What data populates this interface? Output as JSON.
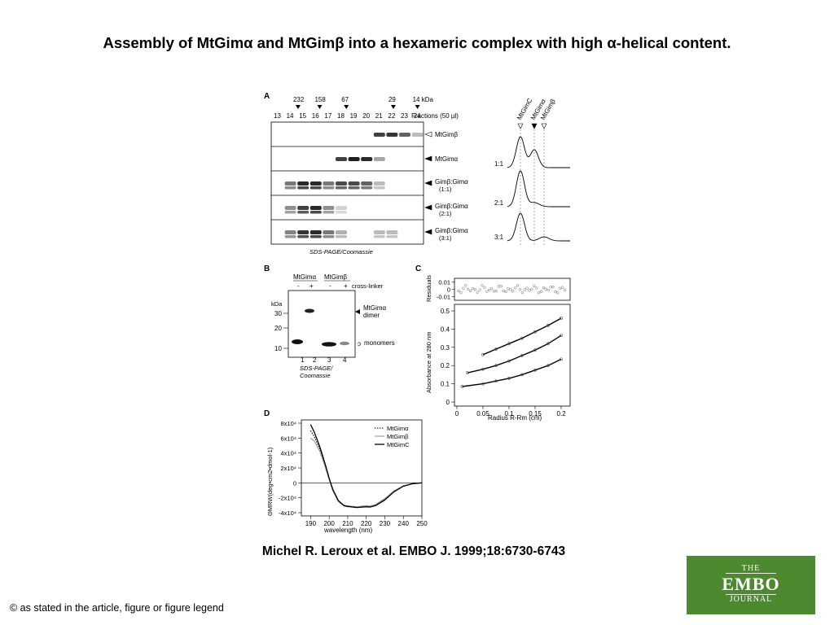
{
  "title": "Assembly of MtGimα and MtGimβ into a hexameric complex with high α-helical content.",
  "citation": "Michel R. Leroux et al. EMBO J. 1999;18:6730-6743",
  "copyright": "© as stated in the article, figure or figure legend",
  "logo": {
    "line1": "THE",
    "line2": "EMBO",
    "line3": "JOURNAL",
    "color": "#4d8a2f"
  },
  "figure": {
    "panelA": {
      "label": "A",
      "markers": [
        "232",
        "158",
        "67",
        "29",
        "14 kDa"
      ],
      "fraction_numbers": [
        "13",
        "14",
        "15",
        "16",
        "17",
        "18",
        "19",
        "20",
        "21",
        "22",
        "23",
        "24"
      ],
      "fractions_label": "Fractions (50 µl)",
      "gel_rows": [
        {
          "label": "MtGimβ",
          "sub": ""
        },
        {
          "label": "MtGimα",
          "sub": ""
        },
        {
          "label": "Gimβ:Gimα",
          "sub": "(1:1)"
        },
        {
          "label": "Gimβ:Gimα",
          "sub": "(2:1)"
        },
        {
          "label": "Gimβ:Gimα",
          "sub": "(3:1)"
        }
      ],
      "gel_caption": "SDS-PAGE/Coomassie",
      "trace_headers": [
        "MtGimC",
        "MtGimα",
        "MtGimβ"
      ],
      "ratios": [
        "1:1",
        "2:1",
        "3:1"
      ]
    },
    "panelB": {
      "label": "B",
      "headers": [
        "MtGimα",
        "MtGimβ"
      ],
      "signs": [
        "-",
        "+",
        "-",
        "+"
      ],
      "crosslinker_label": "cross-linker",
      "kda_label": "kDa",
      "mw_ticks": [
        "30",
        "20",
        "10"
      ],
      "dimer_label_1": "MtGimα",
      "dimer_label_2": "dimer",
      "monomers_label": "monomers",
      "lanes": [
        "1",
        "2",
        "3",
        "4"
      ],
      "caption_1": "SDS-PAGE/",
      "caption_2": "Coomassie"
    },
    "panelD_label": "D"
  },
  "chart_data": [
    {
      "panel": "C",
      "type": "scatter",
      "title": "C",
      "xlabel": "Radius R-Rm (cm)",
      "ylabel": "Absorbance at 280 nm",
      "xlim": [
        0,
        0.2
      ],
      "ylim": [
        0,
        0.5
      ],
      "xticks": [
        "0",
        "0.05",
        "0.1",
        "0.15",
        "0.2"
      ],
      "yticks": [
        "0",
        "0.1",
        "0.2",
        "0.3",
        "0.4",
        "0.5"
      ],
      "series": [
        {
          "x": [
            0.05,
            0.075,
            0.1,
            0.125,
            0.15,
            0.175,
            0.2
          ],
          "y": [
            0.26,
            0.29,
            0.32,
            0.35,
            0.385,
            0.42,
            0.46
          ]
        },
        {
          "x": [
            0.02,
            0.05,
            0.075,
            0.1,
            0.125,
            0.15,
            0.175,
            0.2
          ],
          "y": [
            0.16,
            0.18,
            0.2,
            0.225,
            0.255,
            0.285,
            0.32,
            0.365
          ]
        },
        {
          "x": [
            0.01,
            0.05,
            0.075,
            0.1,
            0.125,
            0.15,
            0.175,
            0.2
          ],
          "y": [
            0.085,
            0.1,
            0.115,
            0.13,
            0.15,
            0.175,
            0.2,
            0.235
          ]
        }
      ],
      "residuals": {
        "ylabel": "Residuals",
        "ylim": [
          -0.015,
          0.015
        ],
        "yticks": [
          "0.01",
          "0",
          "-0.01"
        ]
      }
    },
    {
      "panel": "D",
      "type": "line",
      "xlabel": "wavelength (nm)",
      "ylabel": "ΘMRW(deg•cm2•dmol-1)",
      "xlim": [
        185,
        250
      ],
      "ylim": [
        -40000,
        80000
      ],
      "xticks": [
        "190",
        "200",
        "210",
        "220",
        "230",
        "240",
        "250"
      ],
      "yticks": [
        "8x10⁴",
        "6x10⁴",
        "4x10⁴",
        "2x10⁴",
        "0",
        "-2x10⁴",
        "-4x10⁴"
      ],
      "series": [
        {
          "name": "MtGimα",
          "style": "dotted",
          "x": [
            190,
            192,
            195,
            198,
            200,
            202,
            205,
            208,
            210,
            215,
            220,
            222,
            225,
            230,
            235,
            240,
            245,
            250
          ],
          "y": [
            70000,
            62000,
            45000,
            22000,
            5000,
            -10000,
            -25000,
            -31000,
            -32000,
            -33000,
            -31500,
            -32000,
            -30000,
            -22000,
            -11000,
            -4000,
            -1000,
            0
          ]
        },
        {
          "name": "MtGimβ",
          "style": "gray",
          "x": [
            190,
            192,
            195,
            198,
            200,
            202,
            205,
            208,
            210,
            215,
            220,
            222,
            225,
            230,
            235,
            240,
            245,
            250
          ],
          "y": [
            60000,
            56000,
            42000,
            20000,
            4000,
            -11000,
            -25000,
            -30000,
            -31000,
            -32000,
            -30500,
            -31000,
            -29000,
            -21000,
            -10500,
            -4000,
            -1000,
            0
          ]
        },
        {
          "name": "MtGimC",
          "style": "solid",
          "x": [
            190,
            192,
            195,
            198,
            200,
            202,
            205,
            208,
            210,
            215,
            220,
            222,
            225,
            230,
            235,
            240,
            245,
            250
          ],
          "y": [
            78000,
            68000,
            48000,
            24000,
            6000,
            -9000,
            -24000,
            -30500,
            -31500,
            -33000,
            -32000,
            -32500,
            -30500,
            -23000,
            -12000,
            -4500,
            -1200,
            0
          ]
        }
      ]
    }
  ]
}
